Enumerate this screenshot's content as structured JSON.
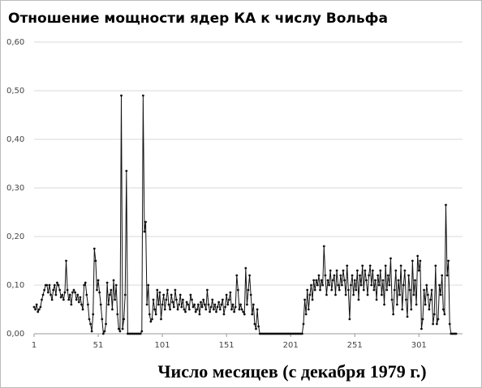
{
  "chart_data": {
    "type": "line",
    "title": "Отношение мощности ядер КА к числу Вольфа",
    "x_label": "Число месяцев (с декабря 1979 г.)",
    "xlim": [
      1,
      335
    ],
    "xticks": [
      1,
      51,
      101,
      151,
      201,
      251,
      301
    ],
    "ylim": [
      0,
      0.6
    ],
    "yticks": [
      {
        "value": 0,
        "label": "0,00"
      },
      {
        "value": 0.1,
        "label": "0,10"
      },
      {
        "value": 0.2,
        "label": "0,20"
      },
      {
        "value": 0.3,
        "label": "0,30"
      },
      {
        "value": 0.4,
        "label": "0,40"
      },
      {
        "value": 0.5,
        "label": "0,50"
      },
      {
        "value": 0.6,
        "label": "0,60"
      }
    ],
    "grid": true,
    "color": "#111111",
    "x": [
      1,
      2,
      3,
      4,
      5,
      6,
      7,
      8,
      9,
      10,
      11,
      12,
      13,
      14,
      15,
      16,
      17,
      18,
      19,
      20,
      21,
      22,
      23,
      24,
      25,
      26,
      27,
      28,
      29,
      30,
      31,
      32,
      33,
      34,
      35,
      36,
      37,
      38,
      39,
      40,
      41,
      42,
      43,
      44,
      45,
      46,
      47,
      48,
      49,
      50,
      51,
      52,
      53,
      54,
      55,
      56,
      57,
      58,
      59,
      60,
      61,
      62,
      63,
      64,
      65,
      66,
      67,
      68,
      69,
      70,
      71,
      72,
      73,
      74,
      75,
      76,
      77,
      78,
      79,
      80,
      81,
      82,
      83,
      84,
      85,
      86,
      87,
      88,
      89,
      90,
      91,
      92,
      93,
      94,
      95,
      96,
      97,
      98,
      99,
      100,
      101,
      102,
      103,
      104,
      105,
      106,
      107,
      108,
      109,
      110,
      111,
      112,
      113,
      114,
      115,
      116,
      117,
      118,
      119,
      120,
      121,
      122,
      123,
      124,
      125,
      126,
      127,
      128,
      129,
      130,
      131,
      132,
      133,
      134,
      135,
      136,
      137,
      138,
      139,
      140,
      141,
      142,
      143,
      144,
      145,
      146,
      147,
      148,
      149,
      150,
      151,
      152,
      153,
      154,
      155,
      156,
      157,
      158,
      159,
      160,
      161,
      162,
      163,
      164,
      165,
      166,
      167,
      168,
      169,
      170,
      171,
      172,
      173,
      174,
      175,
      176,
      177,
      178,
      179,
      180,
      181,
      182,
      183,
      184,
      185,
      186,
      187,
      188,
      189,
      190,
      191,
      192,
      193,
      194,
      195,
      196,
      197,
      198,
      199,
      200,
      201,
      202,
      203,
      204,
      205,
      206,
      207,
      208,
      209,
      210,
      211,
      212,
      213,
      214,
      215,
      216,
      217,
      218,
      219,
      220,
      221,
      222,
      223,
      224,
      225,
      226,
      227,
      228,
      229,
      230,
      231,
      232,
      233,
      234,
      235,
      236,
      237,
      238,
      239,
      240,
      241,
      242,
      243,
      244,
      245,
      246,
      247,
      248,
      249,
      250,
      251,
      252,
      253,
      254,
      255,
      256,
      257,
      258,
      259,
      260,
      261,
      262,
      263,
      264,
      265,
      266,
      267,
      268,
      269,
      270,
      271,
      272,
      273,
      274,
      275,
      276,
      277,
      278,
      279,
      280,
      281,
      282,
      283,
      284,
      285,
      286,
      287,
      288,
      289,
      290,
      291,
      292,
      293,
      294,
      295,
      296,
      297,
      298,
      299,
      300,
      301,
      302,
      303,
      304,
      305,
      306,
      307,
      308,
      309,
      310,
      311,
      312,
      313,
      314,
      315,
      316,
      317,
      318,
      319,
      320,
      321,
      322,
      323,
      324,
      325,
      326,
      327,
      328,
      329,
      330
    ],
    "values": [
      0.055,
      0.05,
      0.06,
      0.045,
      0.05,
      0.055,
      0.07,
      0.08,
      0.09,
      0.1,
      0.1,
      0.085,
      0.1,
      0.08,
      0.07,
      0.09,
      0.1,
      0.08,
      0.105,
      0.1,
      0.09,
      0.075,
      0.08,
      0.07,
      0.085,
      0.15,
      0.09,
      0.07,
      0.08,
      0.06,
      0.085,
      0.09,
      0.085,
      0.07,
      0.08,
      0.065,
      0.075,
      0.06,
      0.05,
      0.1,
      0.105,
      0.08,
      0.06,
      0.03,
      0.02,
      0.005,
      0.04,
      0.175,
      0.15,
      0.09,
      0.11,
      0.085,
      0.06,
      0.03,
      0,
      0.005,
      0.02,
      0.105,
      0.06,
      0.08,
      0.09,
      0.05,
      0.11,
      0.07,
      0.1,
      0.04,
      0.01,
      0.005,
      0.49,
      0.01,
      0.03,
      0.08,
      0.335,
      0,
      0,
      0,
      0,
      0,
      0,
      0,
      0,
      0,
      0,
      0,
      0.005,
      0.49,
      0.21,
      0.23,
      0.06,
      0.1,
      0.04,
      0.025,
      0.03,
      0.07,
      0.05,
      0.04,
      0.09,
      0.06,
      0.085,
      0.03,
      0.06,
      0.08,
      0.05,
      0.07,
      0.09,
      0.06,
      0.05,
      0.08,
      0.065,
      0.055,
      0.09,
      0.07,
      0.05,
      0.06,
      0.08,
      0.055,
      0.07,
      0.05,
      0.045,
      0.065,
      0.06,
      0.05,
      0.08,
      0.07,
      0.055,
      0.06,
      0.045,
      0.05,
      0.06,
      0.04,
      0.065,
      0.055,
      0.07,
      0.06,
      0.05,
      0.09,
      0.06,
      0.045,
      0.055,
      0.07,
      0.05,
      0.06,
      0.045,
      0.055,
      0.065,
      0.05,
      0.06,
      0.07,
      0.04,
      0.055,
      0.08,
      0.06,
      0.07,
      0.085,
      0.05,
      0.06,
      0.045,
      0.055,
      0.12,
      0.09,
      0.05,
      0.06,
      0.05,
      0.045,
      0.04,
      0.135,
      0.06,
      0.09,
      0.12,
      0.08,
      0.04,
      0.06,
      0.02,
      0.01,
      0.05,
      0.015,
      0,
      0,
      0,
      0,
      0,
      0,
      0,
      0,
      0,
      0,
      0,
      0,
      0,
      0,
      0,
      0,
      0,
      0,
      0,
      0,
      0,
      0,
      0,
      0,
      0,
      0,
      0,
      0,
      0,
      0,
      0,
      0,
      0,
      0,
      0.02,
      0.07,
      0.04,
      0.09,
      0.05,
      0.08,
      0.1,
      0.07,
      0.11,
      0.09,
      0.11,
      0.1,
      0.12,
      0.09,
      0.11,
      0.1,
      0.18,
      0.12,
      0.08,
      0.11,
      0.1,
      0.13,
      0.09,
      0.11,
      0.12,
      0.08,
      0.13,
      0.1,
      0.09,
      0.12,
      0.1,
      0.13,
      0.11,
      0.08,
      0.14,
      0.09,
      0.03,
      0.1,
      0.12,
      0.08,
      0.11,
      0.09,
      0.13,
      0.07,
      0.12,
      0.1,
      0.14,
      0.09,
      0.13,
      0.11,
      0.08,
      0.12,
      0.14,
      0.1,
      0.13,
      0.09,
      0.11,
      0.07,
      0.12,
      0.1,
      0.13,
      0.08,
      0.11,
      0.06,
      0.14,
      0.09,
      0.12,
      0.1,
      0.155,
      0.07,
      0.04,
      0.09,
      0.13,
      0.06,
      0.11,
      0.08,
      0.14,
      0.05,
      0.1,
      0.13,
      0.07,
      0.035,
      0.12,
      0.09,
      0.05,
      0.15,
      0.08,
      0.11,
      0.06,
      0.16,
      0.13,
      0.15,
      0.01,
      0.03,
      0.09,
      0.06,
      0.1,
      0.08,
      0.05,
      0.07,
      0.09,
      0.02,
      0.04,
      0.14,
      0.02,
      0.03,
      0.1,
      0.08,
      0.12,
      0.05,
      0.04,
      0.265,
      0.12,
      0.15,
      0.02,
      0,
      0,
      0,
      0,
      0
    ]
  }
}
